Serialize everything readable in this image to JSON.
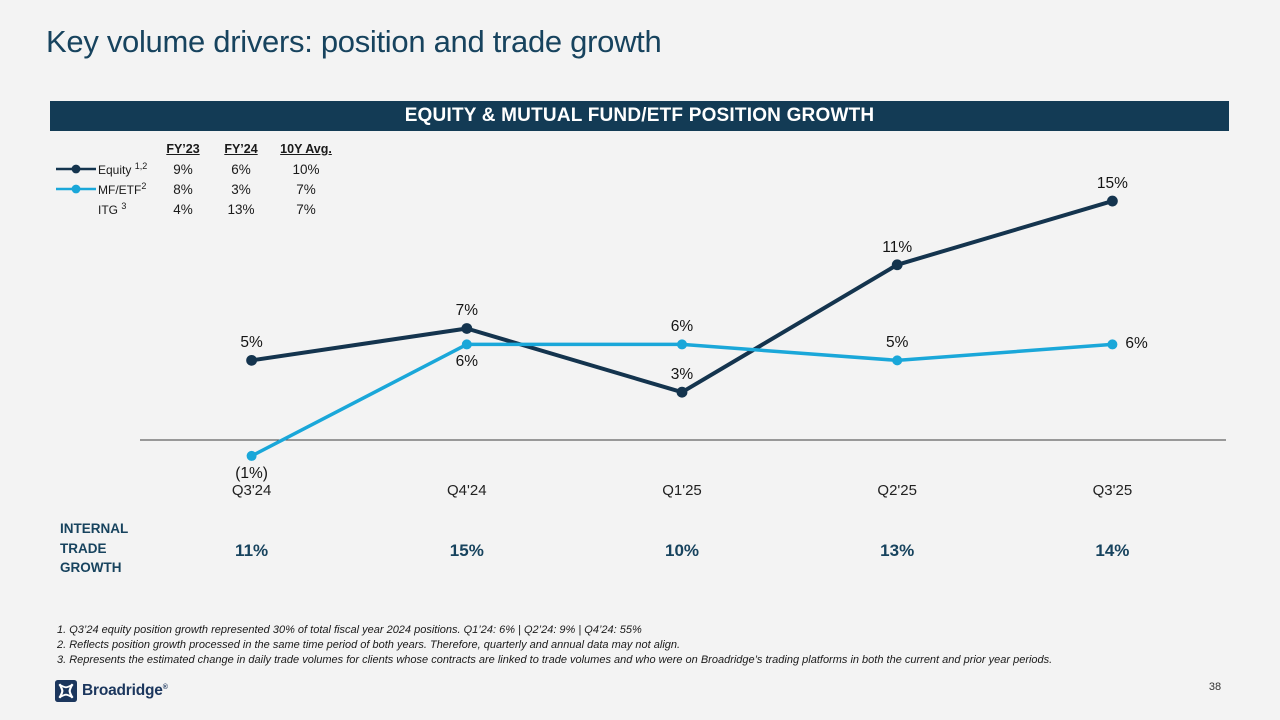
{
  "slide": {
    "title": "Key volume drivers: position and trade growth",
    "banner_title": "EQUITY & MUTUAL FUND/ETF POSITION GROWTH",
    "page_number": "38",
    "logo_text": "Broadridge",
    "logo_reg": "®"
  },
  "legend_table": {
    "columns": [
      "FY’23",
      "FY’24",
      "10Y Avg."
    ],
    "rows": [
      {
        "label": "Equity",
        "sup": "1,2",
        "marker": "navy-line-dot",
        "values": [
          "9%",
          "6%",
          "10%"
        ]
      },
      {
        "label": "MF/ETF",
        "sup": "2",
        "marker": "blue-line-dot",
        "values": [
          "8%",
          "3%",
          "7%"
        ]
      },
      {
        "label": "ITG",
        "sup": "3",
        "marker": "none",
        "values": [
          "4%",
          "13%",
          "7%"
        ]
      }
    ]
  },
  "chart_data": {
    "type": "line",
    "title": "EQUITY & MUTUAL FUND/ETF POSITION GROWTH",
    "categories": [
      "Q3'24",
      "Q4'24",
      "Q1'25",
      "Q2'25",
      "Q3'25"
    ],
    "series": [
      {
        "name": "Equity",
        "color": "#14344e",
        "values": [
          5,
          7,
          3,
          11,
          15
        ],
        "labels": [
          "5%",
          "7%",
          "3%",
          "11%",
          "15%"
        ]
      },
      {
        "name": "MF/ETF",
        "color": "#1aa7d9",
        "values": [
          -1,
          6,
          6,
          5,
          6
        ],
        "labels": [
          "(1%)",
          "6%",
          "6%",
          "5%",
          "6%"
        ]
      }
    ],
    "baseline": 0,
    "ylim": [
      -3,
      17
    ],
    "grid": false,
    "legend_position": "top-left",
    "annotation_tables": {
      "fiscal_summary": {
        "columns": [
          "FY’23",
          "FY’24",
          "10Y Avg."
        ],
        "rows": [
          {
            "name": "Equity",
            "values": [
              "9%",
              "6%",
              "10%"
            ]
          },
          {
            "name": "MF/ETF",
            "values": [
              "8%",
              "3%",
              "7%"
            ]
          },
          {
            "name": "ITG",
            "values": [
              "4%",
              "13%",
              "7%"
            ]
          }
        ]
      }
    }
  },
  "internal_trade_growth": {
    "label": "INTERNAL TRADE GROWTH",
    "values": [
      "11%",
      "15%",
      "10%",
      "13%",
      "14%"
    ]
  },
  "footnotes": [
    "1. Q3’24 equity position growth represented 30% of total fiscal year 2024 positions. Q1’24: 6% | Q2’24: 9% | Q4’24: 55%",
    "2. Reflects position growth processed in the same time period of both years. Therefore, quarterly and annual data may not align.",
    "3. Represents the estimated change in daily trade volumes for clients whose contracts are linked to trade volumes and who were on Broadridge’s trading platforms in both the current and prior year periods."
  ],
  "colors": {
    "equity_line": "#14344e",
    "mfetf_line": "#1aa7d9",
    "banner_bg": "#133b55",
    "navy_text": "#17435e",
    "axis_line": "#3c3c3c",
    "background": "#f3f3f3"
  }
}
